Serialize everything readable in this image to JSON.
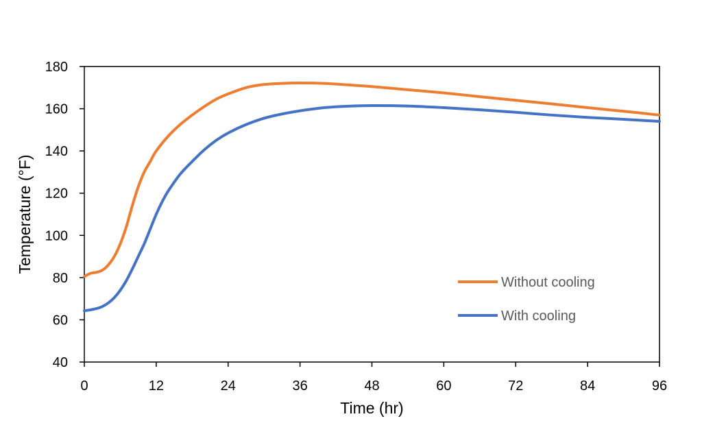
{
  "chart_data": {
    "type": "line",
    "title": "",
    "xlabel": "Time (hr)",
    "ylabel": "Temperature (°F)",
    "xlim": [
      0,
      96
    ],
    "ylim": [
      40,
      180
    ],
    "xticks": [
      0,
      12,
      24,
      36,
      48,
      60,
      72,
      84,
      96
    ],
    "yticks": [
      40,
      60,
      80,
      100,
      120,
      140,
      160,
      180
    ],
    "grid": false,
    "legend": "bottom-right",
    "series": [
      {
        "name": "Without cooling",
        "color": "#ED7D31",
        "x": [
          0,
          1,
          2,
          3,
          4,
          5,
          6,
          7,
          8,
          9,
          10,
          11,
          12,
          14,
          16,
          18,
          20,
          22,
          24,
          27,
          30,
          33,
          36,
          40,
          44,
          48,
          54,
          60,
          66,
          72,
          78,
          84,
          90,
          96
        ],
        "y": [
          80.5,
          82,
          82.5,
          83.5,
          86,
          90,
          96,
          104,
          114,
          123,
          130,
          135,
          140,
          147,
          152.5,
          157,
          161,
          164.5,
          167,
          170,
          171.5,
          172,
          172.2,
          172,
          171.3,
          170.5,
          169,
          167.5,
          165.7,
          164,
          162.3,
          160.5,
          158.8,
          157
        ]
      },
      {
        "name": "With cooling",
        "color": "#4472C4",
        "x": [
          0,
          1,
          2,
          3,
          4,
          5,
          6,
          7,
          8,
          9,
          10,
          11,
          12,
          13,
          14,
          16,
          18,
          20,
          22,
          24,
          27,
          30,
          33,
          36,
          40,
          44,
          48,
          54,
          60,
          66,
          72,
          78,
          84,
          90,
          96
        ],
        "y": [
          64.3,
          64.7,
          65.3,
          66.3,
          68,
          70.5,
          74,
          78.5,
          84,
          90,
          96,
          103,
          110,
          116,
          121,
          129,
          135,
          140.5,
          145,
          148.5,
          152.5,
          155.5,
          157.5,
          159,
          160.5,
          161.2,
          161.5,
          161.3,
          160.5,
          159.5,
          158.3,
          157,
          155.9,
          155,
          154
        ]
      }
    ]
  }
}
